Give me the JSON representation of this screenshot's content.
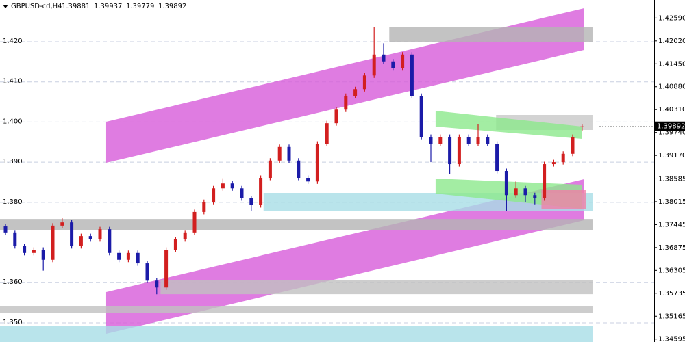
{
  "chart_data": {
    "type": "candlestick",
    "title": "GBPUSD-cd,H4",
    "up_color": "#d21f1f",
    "down_color": "#1b1ba8",
    "grid": true,
    "ylim": [
      1.34522,
      1.43039
    ],
    "open": [
      1.374,
      1.3725,
      1.3691,
      1.3674,
      1.3682,
      1.3657,
      1.3742,
      1.375,
      1.3691,
      1.3716,
      1.3708,
      1.3733,
      1.3674,
      1.3657,
      1.3674,
      1.3648,
      1.3605,
      1.3588,
      1.3682,
      1.3708,
      1.3725,
      1.3776,
      1.3801,
      1.3835,
      1.3847,
      1.3835,
      1.381,
      1.3793,
      1.3861,
      1.3904,
      1.3938,
      1.3904,
      1.3861,
      1.3852,
      1.3946,
      1.3997,
      1.4031,
      1.4065,
      1.4082,
      1.4116,
      1.4168,
      1.4151,
      1.4134,
      1.4168,
      1.4065,
      1.3963,
      1.3946,
      1.3963,
      1.3895,
      1.3963,
      1.3946,
      1.3963,
      1.3946,
      1.3878,
      1.3818,
      1.3835,
      1.3818,
      1.381,
      1.3895,
      1.39,
      1.3921,
      1.39881
    ],
    "high": [
      1.3746,
      1.3731,
      1.3697,
      1.3688,
      1.3688,
      1.3748,
      1.3762,
      1.3756,
      1.3722,
      1.3722,
      1.3739,
      1.3739,
      1.368,
      1.368,
      1.368,
      1.3654,
      1.3611,
      1.3688,
      1.3714,
      1.3731,
      1.3782,
      1.3807,
      1.3841,
      1.386,
      1.3853,
      1.3841,
      1.3816,
      1.3867,
      1.391,
      1.3944,
      1.3944,
      1.391,
      1.3867,
      1.3952,
      1.4003,
      1.4037,
      1.4071,
      1.4088,
      1.4122,
      1.4236,
      1.4196,
      1.4157,
      1.4174,
      1.4174,
      1.4071,
      1.3969,
      1.3969,
      1.3969,
      1.3969,
      1.3969,
      1.3995,
      1.3969,
      1.3952,
      1.3884,
      1.3852,
      1.3841,
      1.3824,
      1.3901,
      1.3906,
      1.3927,
      1.3969,
      1.39937
    ],
    "low": [
      1.3719,
      1.3685,
      1.3668,
      1.3668,
      1.363,
      1.3651,
      1.3736,
      1.3685,
      1.3685,
      1.3702,
      1.3702,
      1.3668,
      1.3651,
      1.3651,
      1.3642,
      1.3599,
      1.3571,
      1.3582,
      1.3676,
      1.3702,
      1.3719,
      1.377,
      1.3795,
      1.3829,
      1.3829,
      1.3804,
      1.3779,
      1.3787,
      1.3855,
      1.3898,
      1.3898,
      1.3855,
      1.3846,
      1.3846,
      1.394,
      1.3991,
      1.4025,
      1.4059,
      1.4076,
      1.411,
      1.4145,
      1.4128,
      1.4128,
      1.4059,
      1.3957,
      1.39,
      1.394,
      1.387,
      1.3889,
      1.394,
      1.394,
      1.394,
      1.3872,
      1.3779,
      1.3812,
      1.38,
      1.3795,
      1.3804,
      1.3889,
      1.3894,
      1.3915,
      1.39779
    ],
    "close": [
      1.3725,
      1.3691,
      1.3674,
      1.3682,
      1.3657,
      1.3742,
      1.375,
      1.3691,
      1.3716,
      1.3708,
      1.3733,
      1.3674,
      1.3657,
      1.3674,
      1.3648,
      1.3605,
      1.3588,
      1.3682,
      1.3708,
      1.3725,
      1.3776,
      1.3801,
      1.3835,
      1.3847,
      1.3835,
      1.381,
      1.3793,
      1.3861,
      1.3904,
      1.3938,
      1.3904,
      1.3861,
      1.3852,
      1.3946,
      1.3997,
      1.4031,
      1.4065,
      1.4082,
      1.4116,
      1.4168,
      1.4151,
      1.4134,
      1.4168,
      1.4065,
      1.3963,
      1.3946,
      1.3963,
      1.3895,
      1.3963,
      1.3946,
      1.3963,
      1.3946,
      1.3878,
      1.3818,
      1.3835,
      1.3818,
      1.381,
      1.3895,
      1.39,
      1.3921,
      1.3963,
      1.39892
    ],
    "yticks": [
      {
        "value": 1.4259,
        "label": "1.42590"
      },
      {
        "value": 1.4202,
        "label": "1.42020"
      },
      {
        "value": 1.4145,
        "label": "1.41450"
      },
      {
        "value": 1.4088,
        "label": "1.40880"
      },
      {
        "value": 1.4031,
        "label": "1.40310"
      },
      {
        "value": 1.3974,
        "label": "1.39740"
      },
      {
        "value": 1.3917,
        "label": "1.39170"
      },
      1.38585,
      {
        "value": 1.38015,
        "label": "1.38015"
      },
      1.37445,
      1.36875,
      1.36305,
      1.35735,
      1.35165,
      1.34595
    ],
    "left_ticks": [
      {
        "value": 1.42,
        "label": "1.420"
      },
      {
        "value": 1.41,
        "label": "1.410"
      },
      {
        "value": 1.4,
        "label": "1.400"
      },
      {
        "value": 1.39,
        "label": "1.390"
      },
      {
        "value": 1.38,
        "label": "1.380"
      },
      {
        "value": 1.36,
        "label": "1.360"
      },
      {
        "value": 1.35,
        "label": "1.350"
      }
    ],
    "zones": [
      {
        "from": 10.65,
        "to": 61.2,
        "top": [
          1.40007,
          1.42835
        ],
        "bottom": [
          1.38985,
          1.41795
        ],
        "color": "#d75bd9"
      },
      {
        "from": 10.65,
        "to": 61.2,
        "top": [
          1.35765,
          1.38576
        ],
        "bottom": [
          1.34726,
          1.37554
        ],
        "color": "#d75bd9"
      },
      {
        "from": 40.6,
        "to": 62.1,
        "top": [
          1.42358,
          1.42358
        ],
        "bottom": [
          1.41983,
          1.41983
        ],
        "color": "#b4b4b4"
      },
      {
        "from": 51.9,
        "to": 62.1,
        "top": [
          1.40177,
          1.40177
        ],
        "bottom": [
          1.39802,
          1.39802
        ],
        "color": "#c8c8c8"
      },
      {
        "from": 45.5,
        "to": 61,
        "top": [
          1.40279,
          1.39887
        ],
        "bottom": [
          1.39887,
          1.39581
        ],
        "color": "#8ce88c"
      },
      {
        "from": -0.6,
        "to": 62.1,
        "top": [
          1.37587,
          1.37587
        ],
        "bottom": [
          1.37315,
          1.37315
        ],
        "color": "#b4b4b4"
      },
      {
        "from": 27.3,
        "to": 62.1,
        "top": [
          1.38235,
          1.38235
        ],
        "bottom": [
          1.37792,
          1.37792
        ],
        "color": "#a8dde6"
      },
      {
        "from": 45.5,
        "to": 61,
        "top": [
          1.38593,
          1.38439
        ],
        "bottom": [
          1.38218,
          1.37843
        ],
        "color": "#8ce88c"
      },
      {
        "from": 56.7,
        "to": 61.4,
        "top": [
          1.38303,
          1.38303
        ],
        "bottom": [
          1.37843,
          1.37843
        ],
        "color": "#f07fa8"
      },
      {
        "from": 16.4,
        "to": 62.1,
        "top": [
          1.36054,
          1.36054
        ],
        "bottom": [
          1.35713,
          1.35713
        ],
        "color": "#c0c0c0"
      },
      {
        "from": -0.6,
        "to": 62.1,
        "top": [
          1.35407,
          1.35407
        ],
        "bottom": [
          1.35237,
          1.35237
        ],
        "color": "#c0c0c0"
      },
      {
        "from": -0.6,
        "to": 62.1,
        "top": [
          1.3493,
          1.3493
        ],
        "bottom": [
          1.34522,
          1.34522
        ],
        "color": "#a8dde6"
      }
    ]
  }
}
